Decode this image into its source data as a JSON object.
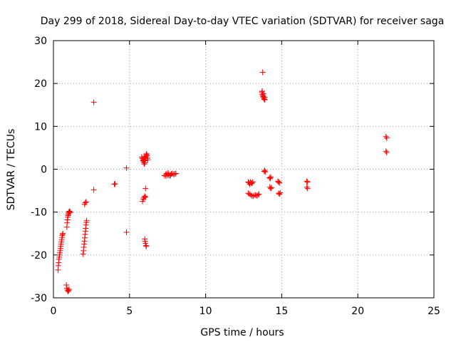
{
  "chart_data": {
    "type": "scatter",
    "title": "Day 299 of 2018, Sidereal Day-to-day VTEC variation (SDTVAR) for receiver saga",
    "xlabel": "GPS time / hours",
    "ylabel": "SDTVAR / TECUs",
    "xlim": [
      0,
      25
    ],
    "ylim": [
      -30,
      30
    ],
    "xticks": [
      0,
      5,
      10,
      15,
      20,
      25
    ],
    "yticks": [
      -30,
      -20,
      -10,
      0,
      10,
      20,
      30
    ],
    "xtick_labels": [
      "0",
      "5",
      "10",
      "15",
      "20",
      "25"
    ],
    "ytick_labels": [
      "-30",
      "-20",
      "-10",
      "0",
      "10",
      "20",
      "30"
    ],
    "grid": true,
    "marker": "+",
    "color": "#ff0000",
    "series": [
      {
        "name": "SDTVAR",
        "points": [
          [
            0.3,
            -23.5
          ],
          [
            0.32,
            -22.5
          ],
          [
            0.34,
            -21.8
          ],
          [
            0.36,
            -21.0
          ],
          [
            0.38,
            -20.5
          ],
          [
            0.4,
            -20.0
          ],
          [
            0.42,
            -19.5
          ],
          [
            0.44,
            -19.0
          ],
          [
            0.46,
            -18.5
          ],
          [
            0.48,
            -18.0
          ],
          [
            0.5,
            -17.5
          ],
          [
            0.52,
            -17.0
          ],
          [
            0.54,
            -16.5
          ],
          [
            0.56,
            -16.0
          ],
          [
            0.58,
            -15.5
          ],
          [
            0.6,
            -15.2
          ],
          [
            0.62,
            -15.0
          ],
          [
            0.85,
            -27.0
          ],
          [
            0.88,
            -27.8
          ],
          [
            0.92,
            -28.2
          ],
          [
            0.96,
            -28.5
          ],
          [
            1.0,
            -28.3
          ],
          [
            1.02,
            -28.0
          ],
          [
            0.88,
            -13.5
          ],
          [
            0.9,
            -12.5
          ],
          [
            0.92,
            -11.8
          ],
          [
            0.94,
            -11.2
          ],
          [
            0.96,
            -10.8
          ],
          [
            0.98,
            -10.5
          ],
          [
            1.0,
            -10.2
          ],
          [
            1.02,
            -10.0
          ],
          [
            1.05,
            -9.8
          ],
          [
            1.08,
            -9.9
          ],
          [
            1.1,
            -10.1
          ],
          [
            1.95,
            -19.8
          ],
          [
            1.98,
            -19.0
          ],
          [
            2.0,
            -18.2
          ],
          [
            2.02,
            -17.5
          ],
          [
            2.04,
            -16.8
          ],
          [
            2.06,
            -16.0
          ],
          [
            2.08,
            -15.2
          ],
          [
            2.1,
            -14.5
          ],
          [
            2.12,
            -13.8
          ],
          [
            2.14,
            -13.0
          ],
          [
            2.16,
            -12.4
          ],
          [
            2.18,
            -12.0
          ],
          [
            2.05,
            -8.2
          ],
          [
            2.1,
            -7.8
          ],
          [
            2.15,
            -7.6
          ],
          [
            2.65,
            15.6
          ],
          [
            2.65,
            -4.8
          ],
          [
            4.0,
            -3.5
          ],
          [
            4.05,
            -3.4
          ],
          [
            4.8,
            0.3
          ],
          [
            4.8,
            -14.7
          ],
          [
            5.85,
            -7.5
          ],
          [
            5.9,
            -7.0
          ],
          [
            5.95,
            -6.6
          ],
          [
            6.0,
            -6.3
          ],
          [
            6.05,
            -6.5
          ],
          [
            5.8,
            2.8
          ],
          [
            5.85,
            2.5
          ],
          [
            5.88,
            2.2
          ],
          [
            5.9,
            2.0
          ],
          [
            5.92,
            1.8
          ],
          [
            5.95,
            1.5
          ],
          [
            5.98,
            1.2
          ],
          [
            6.0,
            1.5
          ],
          [
            6.02,
            2.0
          ],
          [
            6.05,
            2.5
          ],
          [
            6.08,
            3.0
          ],
          [
            6.1,
            3.4
          ],
          [
            6.12,
            3.6
          ],
          [
            6.15,
            3.2
          ],
          [
            6.18,
            2.6
          ],
          [
            6.2,
            2.2
          ],
          [
            6.0,
            2.8
          ],
          [
            5.95,
            2.6
          ],
          [
            6.05,
            -4.5
          ],
          [
            6.0,
            -16.3
          ],
          [
            6.02,
            -16.8
          ],
          [
            6.05,
            -17.3
          ],
          [
            6.08,
            -17.8
          ],
          [
            6.1,
            -18.0
          ],
          [
            7.3,
            -1.5
          ],
          [
            7.38,
            -1.2
          ],
          [
            7.45,
            -1.0
          ],
          [
            7.52,
            -1.4
          ],
          [
            7.6,
            -1.5
          ],
          [
            7.68,
            -1.3
          ],
          [
            7.75,
            -1.1
          ],
          [
            7.82,
            -1.0
          ],
          [
            7.9,
            -1.2
          ],
          [
            7.98,
            -1.1
          ],
          [
            8.05,
            -1.0
          ],
          [
            7.4,
            -1.6
          ],
          [
            7.55,
            -0.9
          ],
          [
            7.7,
            -1.5
          ],
          [
            12.8,
            -3.0
          ],
          [
            12.85,
            -3.2
          ],
          [
            12.9,
            -3.5
          ],
          [
            12.95,
            -3.0
          ],
          [
            13.0,
            -3.2
          ],
          [
            13.05,
            -3.3
          ],
          [
            13.1,
            -3.0
          ],
          [
            12.8,
            -5.6
          ],
          [
            12.88,
            -5.8
          ],
          [
            12.96,
            -6.0
          ],
          [
            13.04,
            -6.2
          ],
          [
            13.12,
            -6.3
          ],
          [
            13.2,
            -6.1
          ],
          [
            13.28,
            -6.0
          ],
          [
            13.36,
            -6.2
          ],
          [
            13.44,
            -6.0
          ],
          [
            13.5,
            -5.8
          ],
          [
            13.75,
            22.6
          ],
          [
            13.7,
            18.0
          ],
          [
            13.72,
            17.5
          ],
          [
            13.75,
            17.2
          ],
          [
            13.78,
            17.0
          ],
          [
            13.8,
            16.8
          ],
          [
            13.83,
            16.5
          ],
          [
            13.86,
            16.3
          ],
          [
            13.89,
            16.2
          ],
          [
            13.72,
            18.2
          ],
          [
            13.8,
            17.6
          ],
          [
            13.88,
            16.8
          ],
          [
            13.85,
            -0.5
          ],
          [
            13.88,
            -0.3
          ],
          [
            13.92,
            -0.6
          ],
          [
            14.2,
            -2.0
          ],
          [
            14.25,
            -2.2
          ],
          [
            14.28,
            -1.8
          ],
          [
            14.22,
            -4.2
          ],
          [
            14.28,
            -4.5
          ],
          [
            14.32,
            -4.3
          ],
          [
            14.75,
            -2.8
          ],
          [
            14.8,
            -3.0
          ],
          [
            14.85,
            -3.2
          ],
          [
            14.8,
            -5.6
          ],
          [
            14.85,
            -5.8
          ],
          [
            14.9,
            -5.5
          ],
          [
            16.65,
            -2.8
          ],
          [
            16.7,
            -3.0
          ],
          [
            16.65,
            -4.2
          ],
          [
            16.7,
            -4.5
          ],
          [
            21.85,
            7.6
          ],
          [
            21.9,
            7.3
          ],
          [
            21.85,
            4.2
          ],
          [
            21.9,
            3.9
          ]
        ]
      }
    ]
  }
}
